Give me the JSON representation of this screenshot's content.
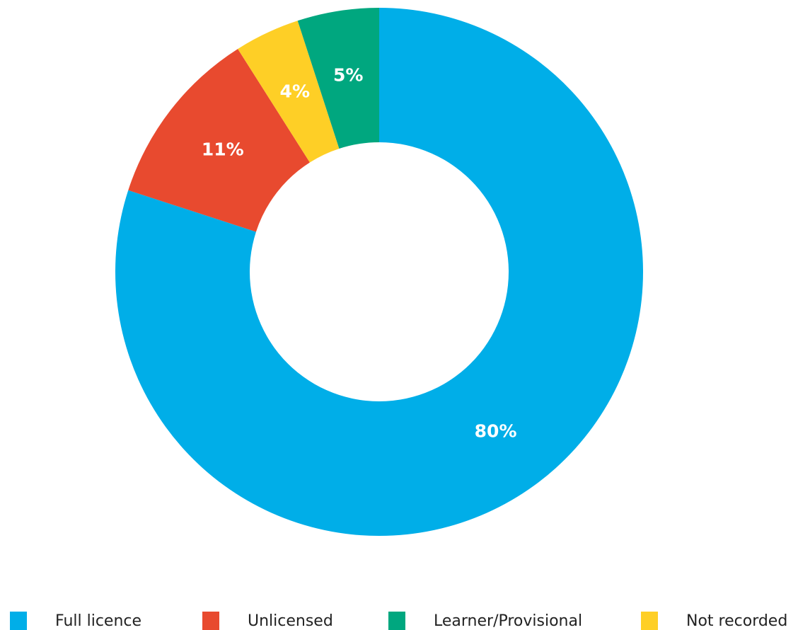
{
  "chart_data": {
    "type": "donut",
    "categories": [
      "Full licence",
      "Unlicensed",
      "Not recorded",
      "Learner/Provisional"
    ],
    "values": [
      80,
      11,
      4,
      5
    ],
    "value_labels": [
      "80%",
      "11%",
      "4%",
      "5%"
    ],
    "colors": [
      "#00aee8",
      "#e84a2f",
      "#fecf26",
      "#00a77f"
    ],
    "legend_order": [
      0,
      1,
      3,
      2
    ],
    "legend": "bottom"
  }
}
